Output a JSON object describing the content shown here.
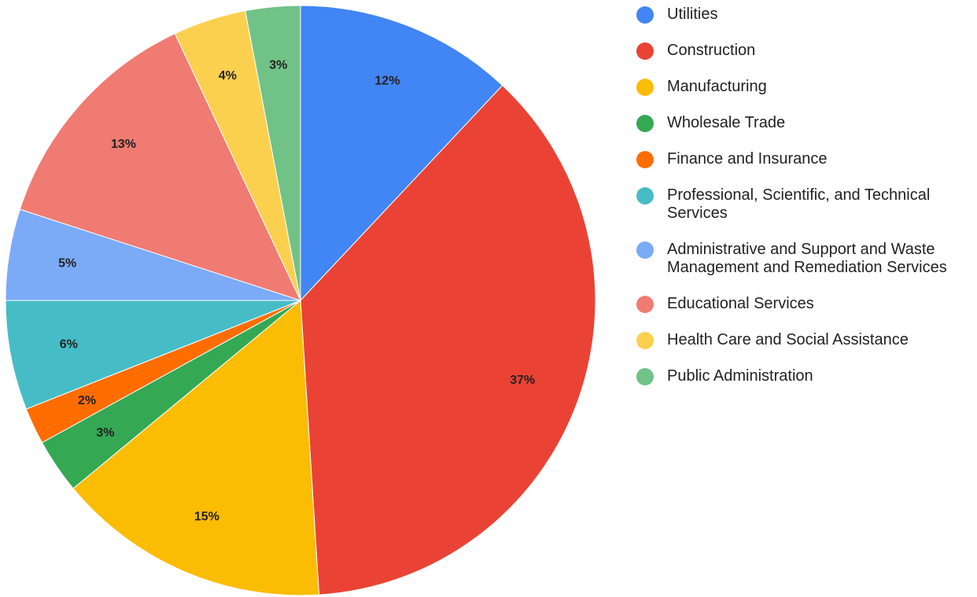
{
  "chart_data": {
    "type": "pie",
    "categories": [
      "Utilities",
      "Construction",
      "Manufacturing",
      "Wholesale Trade",
      "Finance and Insurance",
      "Professional, Scientific, and Technical Services",
      "Administrative and Support and Waste Management and Remediation Services",
      "Educational Services",
      "Health Care and Social Assistance",
      "Public Administration"
    ],
    "values": [
      12,
      37,
      15,
      3,
      2,
      6,
      5,
      13,
      4,
      3
    ],
    "value_labels": [
      "12%",
      "37%",
      "15%",
      "3%",
      "2%",
      "6%",
      "5%",
      "13%",
      "4%",
      "3%"
    ],
    "colors": [
      "#4285f4",
      "#ea4335",
      "#fbbc04",
      "#34a853",
      "#ff6d01",
      "#46bdc6",
      "#7baaf7",
      "#f07b72",
      "#fcd04f",
      "#71c287"
    ],
    "legend": "right"
  }
}
